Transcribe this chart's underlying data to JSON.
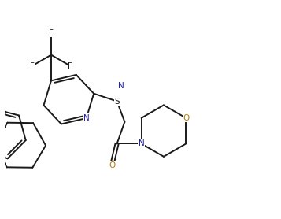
{
  "background_color": "#ffffff",
  "line_color": "#1a1a1a",
  "n_color": "#2020bb",
  "o_color": "#bb7700",
  "s_color": "#1a1a1a",
  "f_color": "#1a1a1a",
  "line_width": 1.4,
  "figsize": [
    3.57,
    2.78
  ],
  "dpi": 100,
  "xlim": [
    0,
    10
  ],
  "ylim": [
    0,
    8
  ]
}
